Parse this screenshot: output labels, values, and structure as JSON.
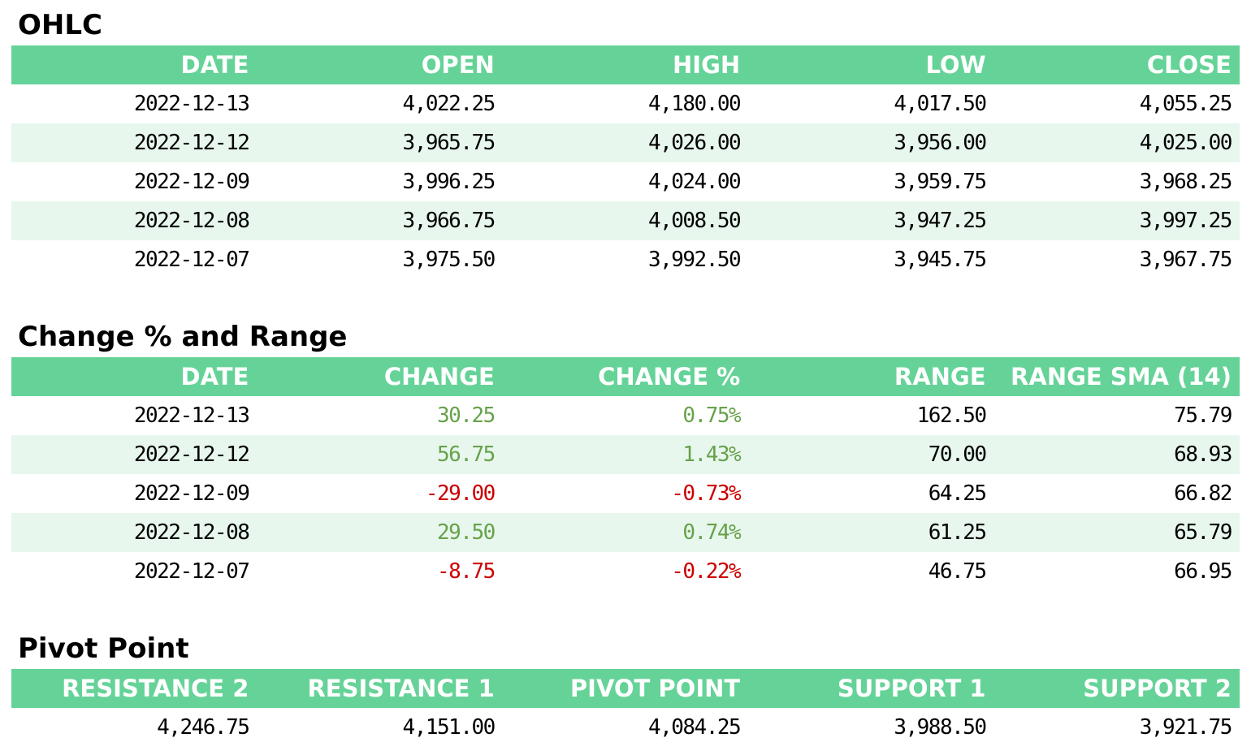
{
  "ohlc": {
    "title": "OHLC",
    "headers": [
      "DATE",
      "OPEN",
      "HIGH",
      "LOW",
      "CLOSE"
    ],
    "rows": [
      [
        "2022-12-13",
        "4,022.25",
        "4,180.00",
        "4,017.50",
        "4,055.25"
      ],
      [
        "2022-12-12",
        "3,965.75",
        "4,026.00",
        "3,956.00",
        "4,025.00"
      ],
      [
        "2022-12-09",
        "3,996.25",
        "4,024.00",
        "3,959.75",
        "3,968.25"
      ],
      [
        "2022-12-08",
        "3,966.75",
        "4,008.50",
        "3,947.25",
        "3,997.25"
      ],
      [
        "2022-12-07",
        "3,975.50",
        "3,992.50",
        "3,945.75",
        "3,967.75"
      ]
    ]
  },
  "change_range": {
    "title": "Change % and Range",
    "headers": [
      "DATE",
      "CHANGE",
      "CHANGE %",
      "RANGE",
      "RANGE SMA (14)"
    ],
    "rows": [
      [
        "2022-12-13",
        "30.25",
        "0.75%",
        "162.50",
        "75.79"
      ],
      [
        "2022-12-12",
        "56.75",
        "1.43%",
        "70.00",
        "68.93"
      ],
      [
        "2022-12-09",
        "-29.00",
        "-0.73%",
        "64.25",
        "66.82"
      ],
      [
        "2022-12-08",
        "29.50",
        "0.74%",
        "61.25",
        "65.79"
      ],
      [
        "2022-12-07",
        "-8.75",
        "-0.22%",
        "46.75",
        "66.95"
      ]
    ]
  },
  "pivot": {
    "title": "Pivot Point",
    "headers": [
      "RESISTANCE 2",
      "RESISTANCE 1",
      "PIVOT POINT",
      "SUPPORT 1",
      "SUPPORT 2"
    ],
    "rows": [
      [
        "4,246.75",
        "4,151.00",
        "4,084.25",
        "3,988.50",
        "3,921.75"
      ]
    ]
  },
  "colors": {
    "header_bg": "#65d398",
    "header_text": "#ffffff",
    "alt_row_bg": "#e8f7ee",
    "positive": "#67a24a",
    "negative": "#cc0000"
  }
}
